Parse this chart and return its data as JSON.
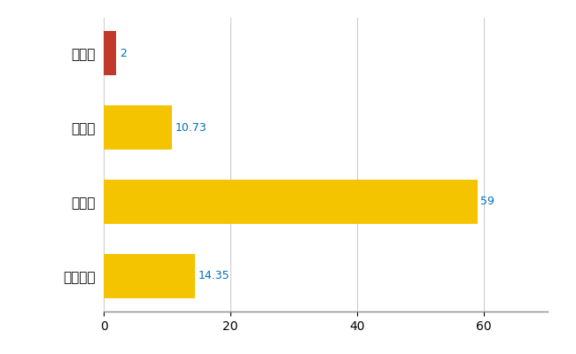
{
  "categories": [
    "全国平均",
    "県最大",
    "県平均",
    "住田町"
  ],
  "values": [
    14.35,
    59,
    10.73,
    2
  ],
  "bar_colors": [
    "#F5C400",
    "#F5C400",
    "#F5C400",
    "#C0392B"
  ],
  "value_labels": [
    "14.35",
    "59",
    "10.73",
    "2"
  ],
  "label_color": "#0070C0",
  "xlim": [
    0,
    70
  ],
  "xticks": [
    0,
    20,
    40,
    60
  ],
  "grid_color": "#CCCCCC",
  "background_color": "#FFFFFF",
  "bar_height": 0.6,
  "figsize": [
    6.5,
    4.0
  ],
  "dpi": 100
}
